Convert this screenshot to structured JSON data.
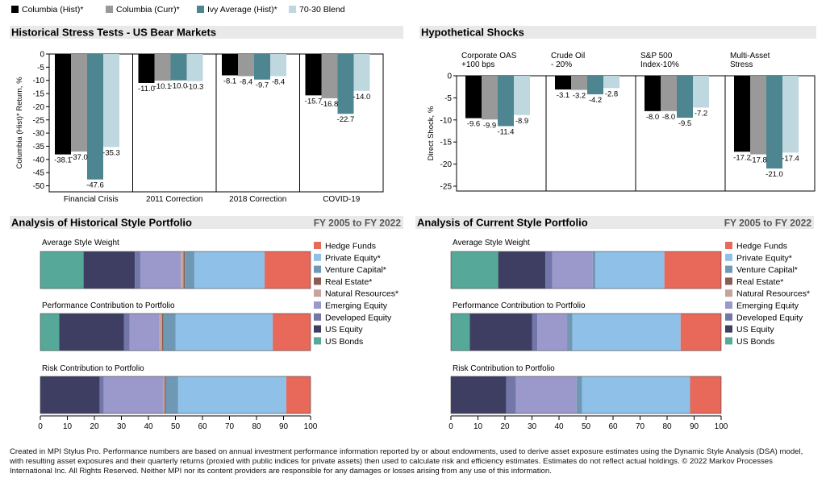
{
  "legend_top": [
    {
      "label": "Columbia (Hist)*",
      "color": "#000000"
    },
    {
      "label": "Columbia (Curr)*",
      "color": "#999999"
    },
    {
      "label": "Ivy Average (Hist)*",
      "color": "#4d8591"
    },
    {
      "label": "70-30 Blend",
      "color": "#bfd7df"
    }
  ],
  "sections": {
    "stress_title": "Historical Stress Tests - US Bear Markets",
    "shocks_title": "Hypothetical Shocks",
    "hist_style_title": "Analysis of Historical Style Portfolio",
    "hist_style_period": "FY 2005 to FY 2022",
    "curr_style_title": "Analysis of Current Style Portfolio",
    "curr_style_period": "FY 2005 to FY 2022"
  },
  "style_legend": [
    {
      "label": "Hedge Funds",
      "color": "#e8685a"
    },
    {
      "label": "Private Equity*",
      "color": "#8fc1e8"
    },
    {
      "label": "Venture Capital*",
      "color": "#6e98b4"
    },
    {
      "label": "Real Estate*",
      "color": "#8a5c54"
    },
    {
      "label": "Natural Resources*",
      "color": "#c6a49c"
    },
    {
      "label": "Emerging Equity",
      "color": "#9b98cb"
    },
    {
      "label": "Developed Equity",
      "color": "#7276a9"
    },
    {
      "label": "US Equity",
      "color": "#3e3e63"
    },
    {
      "label": "US Bonds",
      "color": "#56a899"
    }
  ],
  "chart_data": [
    {
      "id": "stress",
      "type": "bar",
      "title": "Historical Stress Tests - US Bear Markets",
      "ylabel": "Columbia (Hist)* Return, %",
      "ylim": [
        -50,
        0
      ],
      "yticks": [
        0,
        -5,
        -10,
        -15,
        -20,
        -25,
        -30,
        -35,
        -40,
        -45,
        -50
      ],
      "categories": [
        "Financial Crisis",
        "2011 Correction",
        "2018 Correction",
        "COVID-19"
      ],
      "series": [
        {
          "name": "Columbia (Hist)*",
          "color": "#000000",
          "values": [
            -38.1,
            -11.0,
            -8.1,
            -15.7
          ]
        },
        {
          "name": "Columbia (Curr)*",
          "color": "#999999",
          "values": [
            -37.0,
            -10.1,
            -8.4,
            -16.8
          ]
        },
        {
          "name": "Ivy Average (Hist)*",
          "color": "#4d8591",
          "values": [
            -47.6,
            -10.0,
            -9.7,
            -22.7
          ]
        },
        {
          "name": "70-30 Blend",
          "color": "#bfd7df",
          "values": [
            -35.3,
            -10.3,
            -8.4,
            -14.0
          ]
        }
      ],
      "data_labels": [
        [
          "-38.1",
          "-37.0",
          "-47.6",
          "-35.3"
        ],
        [
          "-11.0",
          "-10.1",
          "-10.0",
          "-10.3"
        ],
        [
          "-8.1",
          "-8.4",
          "-9.7",
          "-8.4"
        ],
        [
          "-15.7",
          "-16.8",
          "-22.7",
          "-14.0"
        ]
      ],
      "grid": false
    },
    {
      "id": "shocks",
      "type": "bar",
      "title": "Hypothetical Shocks",
      "ylabel": "Direct Shock, %",
      "ylim": [
        -26,
        0
      ],
      "yticks": [
        0,
        -5,
        -10,
        -15,
        -20,
        -25
      ],
      "categories": [
        [
          "Corporate OAS",
          "+100 bps"
        ],
        [
          "Crude Oil",
          "- 20%"
        ],
        [
          "S&P 500",
          "Index-10%"
        ],
        [
          "Multi-Asset",
          "Stress"
        ]
      ],
      "series": [
        {
          "name": "Columbia (Hist)*",
          "color": "#000000",
          "values": [
            -9.6,
            -3.1,
            -8.0,
            -17.2
          ]
        },
        {
          "name": "Columbia (Curr)*",
          "color": "#999999",
          "values": [
            -9.9,
            -3.2,
            -8.0,
            -17.8
          ]
        },
        {
          "name": "Ivy Average (Hist)*",
          "color": "#4d8591",
          "values": [
            -11.4,
            -4.2,
            -9.5,
            -21.0
          ]
        },
        {
          "name": "70-30 Blend",
          "color": "#bfd7df",
          "values": [
            -8.9,
            -2.8,
            -7.2,
            -17.4
          ]
        }
      ],
      "data_labels": [
        [
          "-9.6",
          "-9.9",
          "-11.4",
          "-8.9"
        ],
        [
          "-3.1",
          "-3.2",
          "-4.2",
          "-2.8"
        ],
        [
          "-8.0",
          "-8.0",
          "-9.5",
          "-7.2"
        ],
        [
          "-17.2",
          "-17.8",
          "-21.0",
          "-17.4"
        ]
      ],
      "grid": false
    },
    {
      "id": "hist_style",
      "type": "bar",
      "orientation": "horizontal-stacked",
      "title": "Analysis of Historical Style Portfolio",
      "xlim": [
        0,
        100
      ],
      "xticks": [
        0,
        10,
        20,
        30,
        40,
        50,
        60,
        70,
        80,
        90,
        100
      ],
      "components": [
        "US Bonds",
        "US Equity",
        "Developed Equity",
        "Emerging Equity",
        "Natural Resources*",
        "Real Estate*",
        "Venture Capital*",
        "Private Equity*",
        "Hedge Funds"
      ],
      "rows": [
        {
          "label": "Average Style Weight",
          "values": [
            16,
            19,
            2,
            15,
            1,
            0.5,
            3.5,
            26,
            17
          ]
        },
        {
          "label": "Performance Contribution to Portfolio",
          "values": [
            7,
            24,
            2,
            11,
            1,
            0.5,
            4.5,
            36,
            14
          ]
        },
        {
          "label": "Risk Contribution to Portfolio",
          "values": [
            0,
            22,
            1.5,
            22,
            0.5,
            0.5,
            4.5,
            40,
            9
          ]
        }
      ]
    },
    {
      "id": "curr_style",
      "type": "bar",
      "orientation": "horizontal-stacked",
      "title": "Analysis of Current Style Portfolio",
      "xlim": [
        0,
        100
      ],
      "xticks": [
        0,
        10,
        20,
        30,
        40,
        50,
        60,
        70,
        80,
        90,
        100
      ],
      "components": [
        "US Bonds",
        "US Equity",
        "Developed Equity",
        "Emerging Equity",
        "Natural Resources*",
        "Real Estate*",
        "Venture Capital*",
        "Private Equity*",
        "Hedge Funds"
      ],
      "rows": [
        {
          "label": "Average Style Weight",
          "values": [
            17.5,
            17.5,
            2.5,
            15,
            0,
            0,
            1,
            25.5,
            21
          ]
        },
        {
          "label": "Performance Contribution to Portfolio",
          "values": [
            7,
            23,
            2,
            11,
            0,
            0,
            2,
            40,
            15
          ]
        },
        {
          "label": "Risk Contribution to Portfolio",
          "values": [
            0,
            20.5,
            3.5,
            22.5,
            0,
            0,
            2,
            40,
            11.5
          ]
        }
      ]
    }
  ],
  "footnote": "Created in MPI Stylus Pro. Performance numbers are based on annual investment performance information reported by or about endowments, used to derive asset exposure estimates using the Dynamic Style Analysis (DSA) model, with resulting asset exposures and their quarterly returns (proxied with public indices for private assets) then used to calculate risk and efficiency estimates. Estimates do not reflect actual holdings. © 2022 Markov Processes International Inc.  All Rights Reserved. Neither MPI nor its content providers are responsible for any damages or losses arising from any use of this information."
}
